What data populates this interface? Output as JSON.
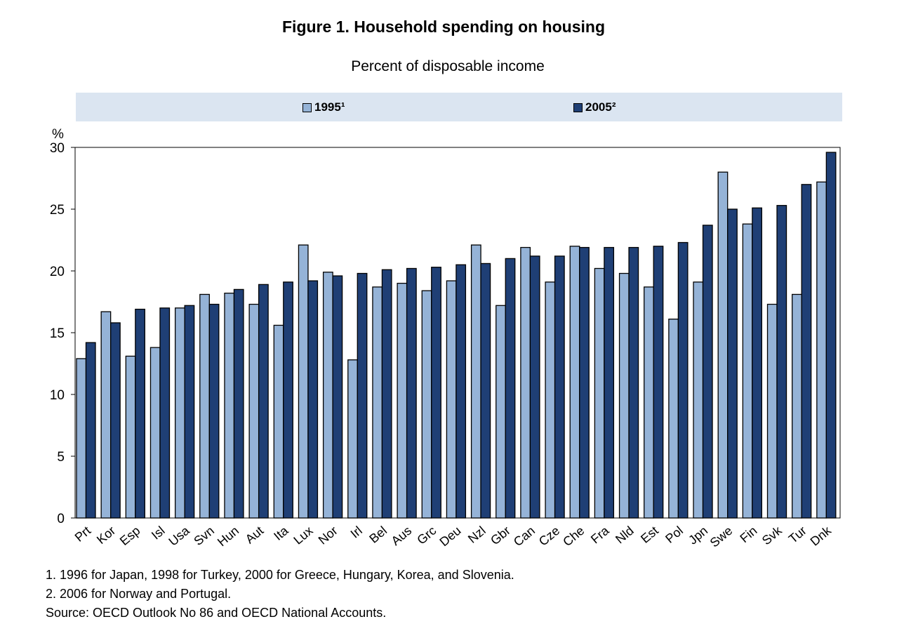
{
  "title": "Figure 1. Household spending on housing",
  "subtitle": "Percent of disposable income",
  "legend": {
    "series1": "1995¹",
    "series2": "2005²"
  },
  "notes": [
    "1. 1996 for Japan, 1998 for Turkey, 2000 for Greece, Hungary, Korea, and Slovenia.",
    "2. 2006 for Norway and Portugal.",
    "Source: OECD Outlook No 86 and OECD National Accounts."
  ],
  "colors": {
    "series1": "#95b3d7",
    "series2": "#1f3f75",
    "legend_bg": "#dbe5f1"
  },
  "chart_data": {
    "type": "bar",
    "ylabel": "%",
    "ylim": [
      0,
      30
    ],
    "yticks": [
      0,
      5,
      10,
      15,
      20,
      25,
      30
    ],
    "grid": false,
    "legend_position": "top",
    "categories": [
      "Prt",
      "Kor",
      "Esp",
      "Isl",
      "Usa",
      "Svn",
      "Hun",
      "Aut",
      "Ita",
      "Lux",
      "Nor",
      "Irl",
      "Bel",
      "Aus",
      "Grc",
      "Deu",
      "Nzl",
      "Gbr",
      "Can",
      "Cze",
      "Che",
      "Fra",
      "Nld",
      "Est",
      "Pol",
      "Jpn",
      "Swe",
      "Fin",
      "Svk",
      "Tur",
      "Dnk"
    ],
    "series": [
      {
        "name": "1995¹",
        "values": [
          12.9,
          16.7,
          13.1,
          13.8,
          17.0,
          18.1,
          18.2,
          17.3,
          15.6,
          22.1,
          19.9,
          12.8,
          18.7,
          19.0,
          18.4,
          19.2,
          22.1,
          17.2,
          21.9,
          19.1,
          22.0,
          20.2,
          19.8,
          18.7,
          16.1,
          19.1,
          28.0,
          23.8,
          17.3,
          18.1,
          27.2
        ]
      },
      {
        "name": "2005²",
        "values": [
          14.2,
          15.8,
          16.9,
          17.0,
          17.2,
          17.3,
          18.5,
          18.9,
          19.1,
          19.2,
          19.6,
          19.8,
          20.1,
          20.2,
          20.3,
          20.5,
          20.6,
          21.0,
          21.2,
          21.2,
          21.9,
          21.9,
          21.9,
          22.0,
          22.3,
          23.7,
          25.0,
          25.1,
          25.3,
          27.0,
          29.6
        ]
      }
    ]
  }
}
